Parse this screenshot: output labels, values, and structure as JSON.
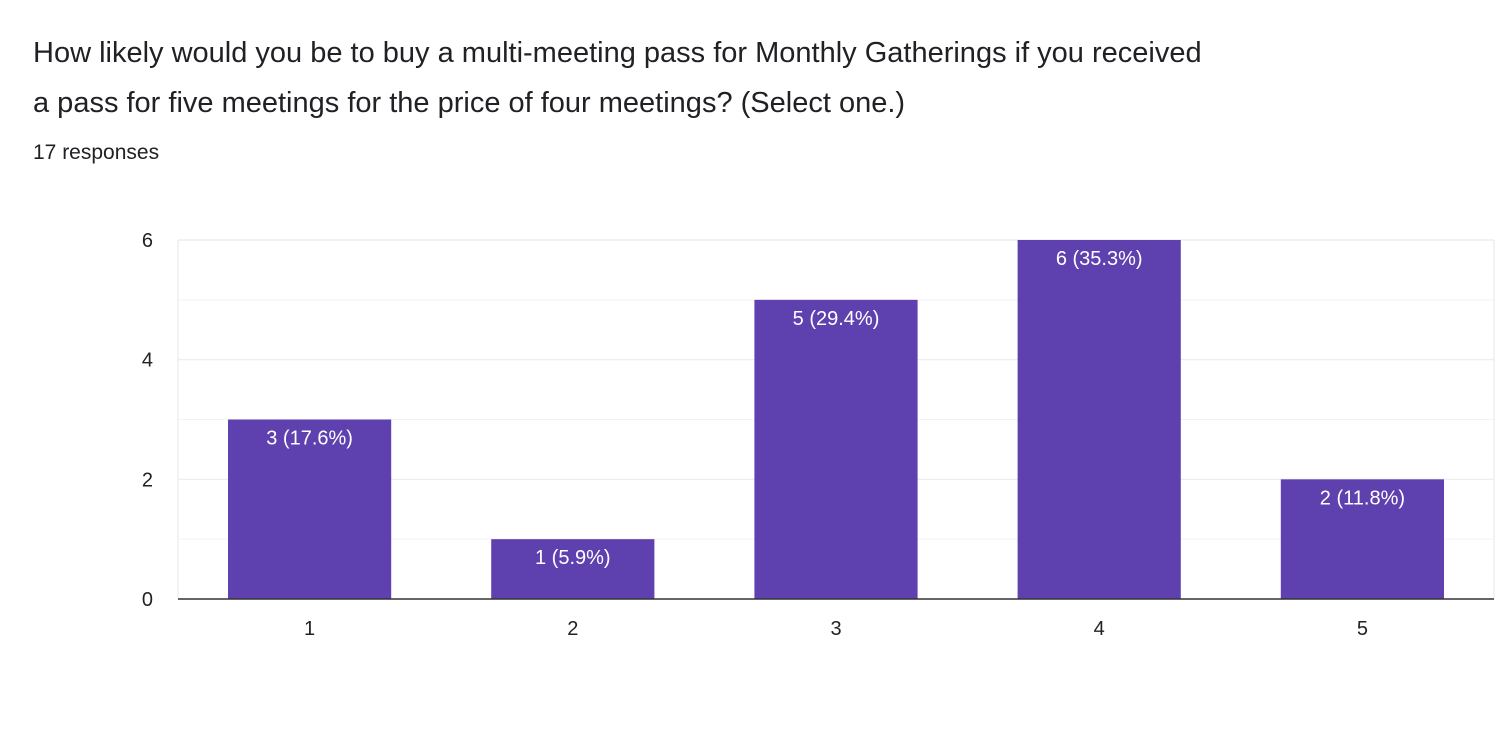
{
  "question": {
    "title": "How likely would you be to buy a multi-meeting pass for Monthly Gatherings if you received\na pass for five meetings for the price of four meetings? (Select one.)",
    "response_count": "17 responses"
  },
  "colors": {
    "bar": "#5e41af",
    "grid": "#ebebeb",
    "axis": "#333333",
    "bar_label": "#ffffff",
    "tick_label": "#222222"
  },
  "chart_data": {
    "type": "bar",
    "categories": [
      "1",
      "2",
      "3",
      "4",
      "5"
    ],
    "values": [
      3,
      1,
      5,
      6,
      2
    ],
    "data_labels": [
      "3 (17.6%)",
      "1 (5.9%)",
      "5 (29.4%)",
      "6 (35.3%)",
      "2 (11.8%)"
    ],
    "y_ticks": [
      0,
      2,
      4,
      6
    ],
    "ylim": [
      0,
      6
    ],
    "minor_gridlines": [
      1,
      3,
      5
    ],
    "grid": true,
    "xlabel": "",
    "ylabel": ""
  }
}
